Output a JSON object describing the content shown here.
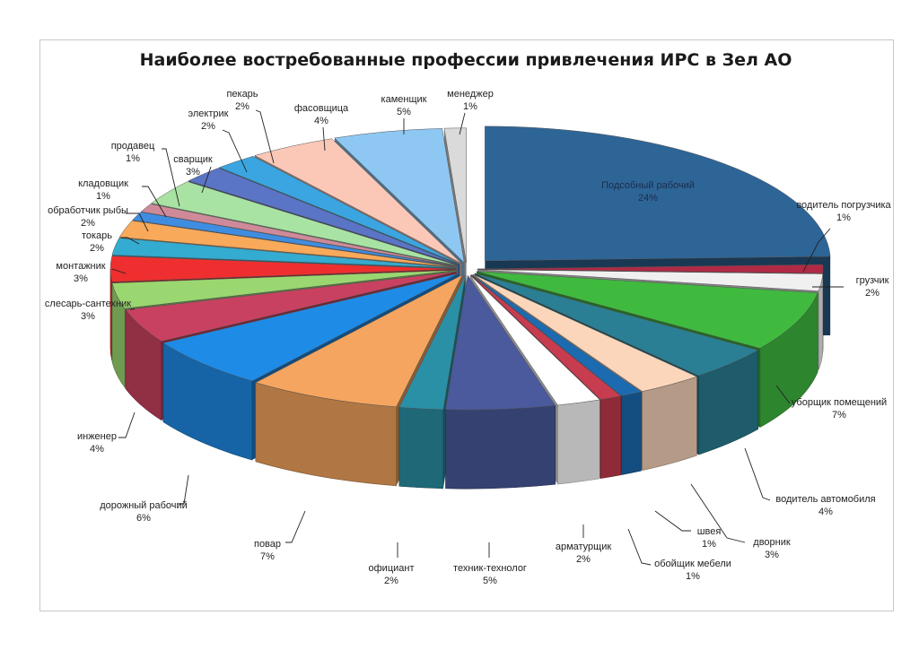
{
  "chart_data": {
    "type": "pie",
    "title": "Наиболее востребованные профессии привлечения ИРС в Зел АО",
    "unit": "%",
    "slices": [
      {
        "label": "Подсобный рабочий",
        "value": 24,
        "value_text": "24%",
        "color": "#2e6597"
      },
      {
        "label": "водитель погрузчика",
        "value": 1,
        "value_text": "1%",
        "color": "#b02a45"
      },
      {
        "label": "грузчик",
        "value": 2,
        "value_text": "2%",
        "color": "#f0f0f0"
      },
      {
        "label": "уборщик помещений",
        "value": 7,
        "value_text": "7%",
        "color": "#3fba3f"
      },
      {
        "label": "водитель автомобиля",
        "value": 4,
        "value_text": "4%",
        "color": "#2a7f94"
      },
      {
        "label": "дворник",
        "value": 3,
        "value_text": "3%",
        "color": "#fbd6bb"
      },
      {
        "label": "швея",
        "value": 1,
        "value_text": "1%",
        "color": "#1c6bb1"
      },
      {
        "label": "обойщик мебели",
        "value": 1,
        "value_text": "1%",
        "color": "#c73c4f"
      },
      {
        "label": "арматурщик",
        "value": 2,
        "value_text": "2%",
        "color": "#ffffff"
      },
      {
        "label": "техник-технолог",
        "value": 5,
        "value_text": "5%",
        "color": "#4a5a9c"
      },
      {
        "label": "официант",
        "value": 2,
        "value_text": "2%",
        "color": "#2a90a6"
      },
      {
        "label": "повар",
        "value": 7,
        "value_text": "7%",
        "color": "#f5a55f"
      },
      {
        "label": "дорожный рабочий",
        "value": 6,
        "value_text": "6%",
        "color": "#1e8be6"
      },
      {
        "label": "инженер",
        "value": 4,
        "value_text": "4%",
        "color": "#c94160"
      },
      {
        "label": "слесарь-сантехник",
        "value": 3,
        "value_text": "3%",
        "color": "#9ad770"
      },
      {
        "label": "монтажник",
        "value": 3,
        "value_text": "3%",
        "color": "#ef2f2f"
      },
      {
        "label": "токарь",
        "value": 2,
        "value_text": "2%",
        "color": "#34abd0"
      },
      {
        "label": "обработчик рыбы",
        "value": 2,
        "value_text": "2%",
        "color": "#f8a95a"
      },
      {
        "label": "кладовщик",
        "value": 1,
        "value_text": "1%",
        "color": "#3f8de0"
      },
      {
        "label": "продавец",
        "value": 1,
        "value_text": "1%",
        "color": "#cf8a9a"
      },
      {
        "label": "сварщик",
        "value": 3,
        "value_text": "3%",
        "color": "#a9e3a3"
      },
      {
        "label": "электрик",
        "value": 2,
        "value_text": "2%",
        "color": "#5a74c6"
      },
      {
        "label": "пекарь",
        "value": 2,
        "value_text": "2%",
        "color": "#3aa5e0"
      },
      {
        "label": "фасовщица",
        "value": 4,
        "value_text": "4%",
        "color": "#fbc8b8"
      },
      {
        "label": "каменщик",
        "value": 5,
        "value_text": "5%",
        "color": "#8ec8f2"
      },
      {
        "label": "менеджер",
        "value": 1,
        "value_text": "1%",
        "color": "#dadada"
      }
    ],
    "legend": "none",
    "style": "3d-exploded"
  }
}
